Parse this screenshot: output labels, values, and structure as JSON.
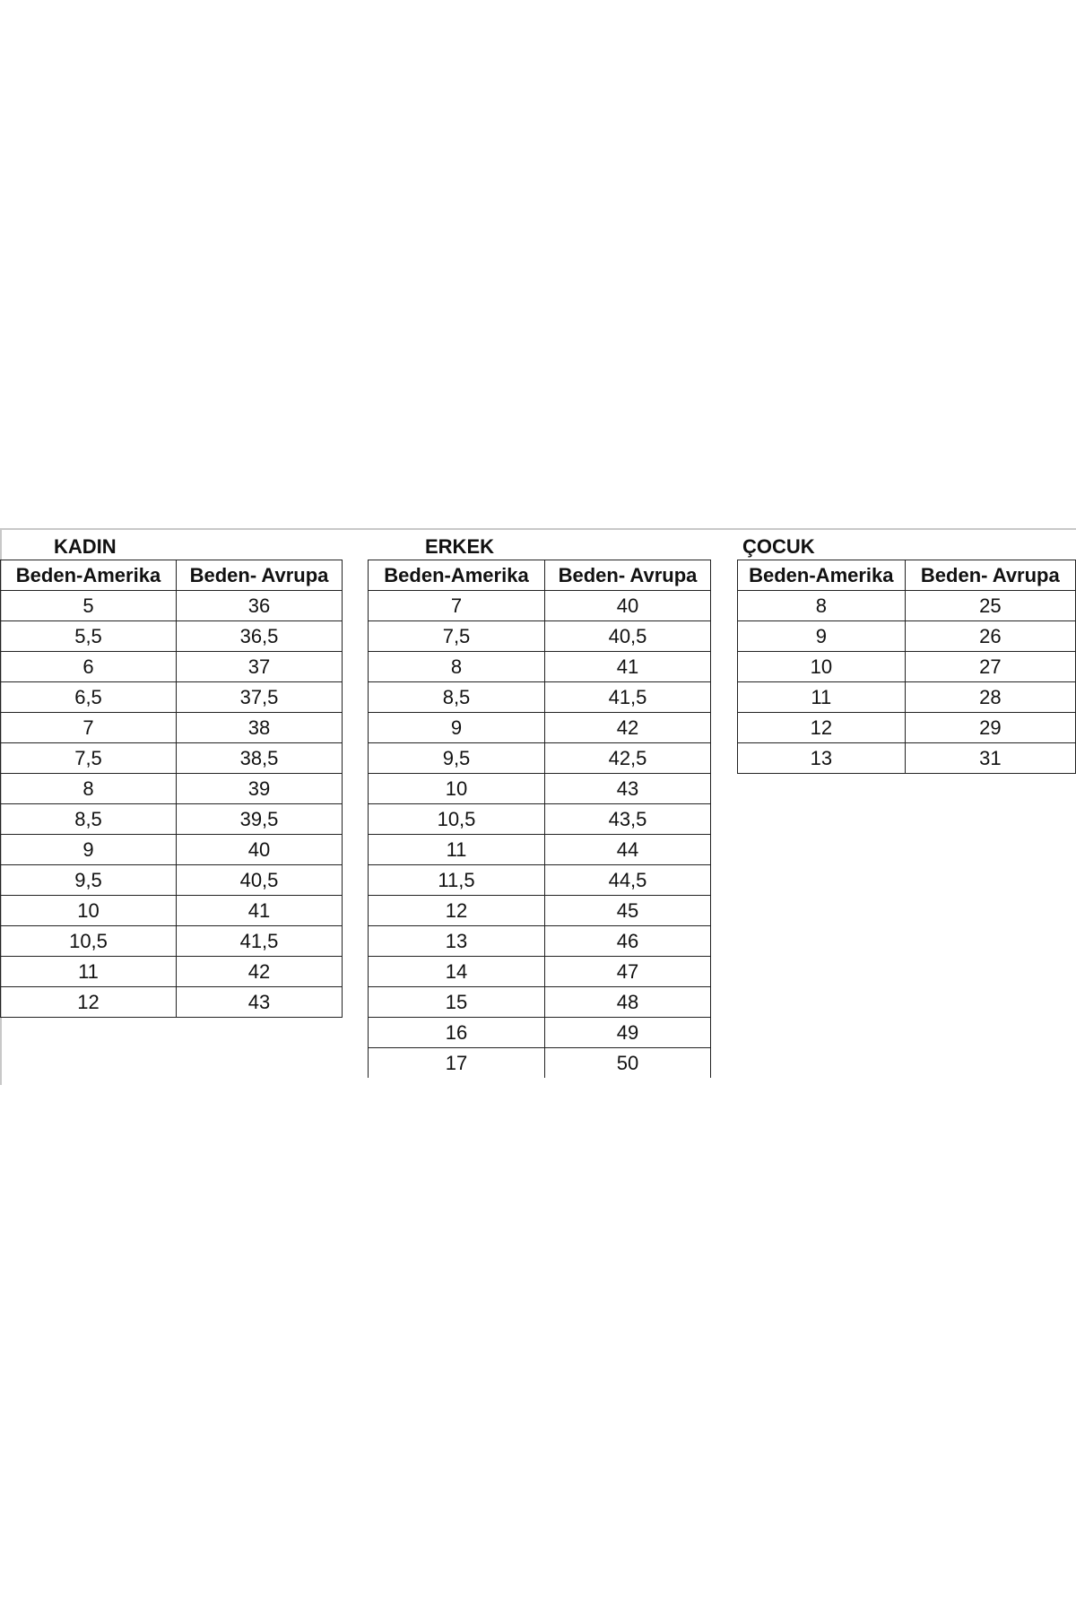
{
  "tables": [
    {
      "id": "kadin",
      "title": "KADIN",
      "headers": [
        "Beden-Amerika",
        "Beden- Avrupa"
      ],
      "rows": [
        [
          "5",
          "36"
        ],
        [
          "5,5",
          "36,5"
        ],
        [
          "6",
          "37"
        ],
        [
          "6,5",
          "37,5"
        ],
        [
          "7",
          "38"
        ],
        [
          "7,5",
          "38,5"
        ],
        [
          "8",
          "39"
        ],
        [
          "8,5",
          "39,5"
        ],
        [
          "9",
          "40"
        ],
        [
          "9,5",
          "40,5"
        ],
        [
          "10",
          "41"
        ],
        [
          "10,5",
          "41,5"
        ],
        [
          "11",
          "42"
        ],
        [
          "12",
          "43"
        ]
      ]
    },
    {
      "id": "erkek",
      "title": "ERKEK",
      "headers": [
        "Beden-Amerika",
        "Beden- Avrupa"
      ],
      "rows": [
        [
          "7",
          "40"
        ],
        [
          "7,5",
          "40,5"
        ],
        [
          "8",
          "41"
        ],
        [
          "8,5",
          "41,5"
        ],
        [
          "9",
          "42"
        ],
        [
          "9,5",
          "42,5"
        ],
        [
          "10",
          "43"
        ],
        [
          "10,5",
          "43,5"
        ],
        [
          "11",
          "44"
        ],
        [
          "11,5",
          "44,5"
        ],
        [
          "12",
          "45"
        ],
        [
          "13",
          "46"
        ],
        [
          "14",
          "47"
        ],
        [
          "15",
          "48"
        ],
        [
          "16",
          "49"
        ],
        [
          "17",
          "50"
        ]
      ]
    },
    {
      "id": "cocuk",
      "title": "ÇOCUK",
      "headers": [
        "Beden-Amerika",
        "Beden- Avrupa"
      ],
      "rows": [
        [
          "8",
          "25"
        ],
        [
          "9",
          "26"
        ],
        [
          "10",
          "27"
        ],
        [
          "11",
          "28"
        ],
        [
          "12",
          "29"
        ],
        [
          "13",
          "31"
        ]
      ]
    }
  ]
}
